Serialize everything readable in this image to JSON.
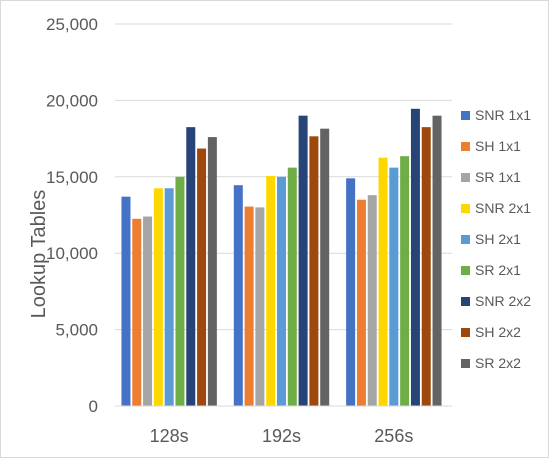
{
  "chart_data": {
    "type": "bar",
    "title": "",
    "xlabel": "",
    "ylabel": "Lookup Tables",
    "categories": [
      "128s",
      "192s",
      "256s"
    ],
    "ylim": [
      0,
      25000
    ],
    "yticks": [
      0,
      5000,
      10000,
      15000,
      20000,
      25000
    ],
    "ytick_labels": [
      "0",
      "5,000",
      "10,000",
      "15,000",
      "20,000",
      "25,000"
    ],
    "grid": "horizontal",
    "legend_position": "right",
    "series": [
      {
        "name": "SNR 1x1",
        "color": "#4472C4",
        "values": [
          13700,
          14450,
          14900
        ]
      },
      {
        "name": "SH 1x1",
        "color": "#ED7D31",
        "values": [
          12250,
          13050,
          13500
        ]
      },
      {
        "name": "SR 1x1",
        "color": "#A5A5A5",
        "values": [
          12400,
          13000,
          13800
        ]
      },
      {
        "name": "SNR 2x1",
        "color": "#FFD700",
        "values": [
          14250,
          15050,
          16250
        ]
      },
      {
        "name": "SH 2x1",
        "color": "#5B9BD5",
        "values": [
          14250,
          15000,
          15600
        ]
      },
      {
        "name": "SR 2x1",
        "color": "#70AD47",
        "values": [
          15000,
          15600,
          16350
        ]
      },
      {
        "name": "SNR 2x2",
        "color": "#264478",
        "values": [
          18250,
          19000,
          19450
        ]
      },
      {
        "name": "SH 2x2",
        "color": "#9E480E",
        "values": [
          16850,
          17650,
          18250
        ]
      },
      {
        "name": "SR 2x2",
        "color": "#636363",
        "values": [
          17600,
          18150,
          19000
        ]
      }
    ]
  }
}
